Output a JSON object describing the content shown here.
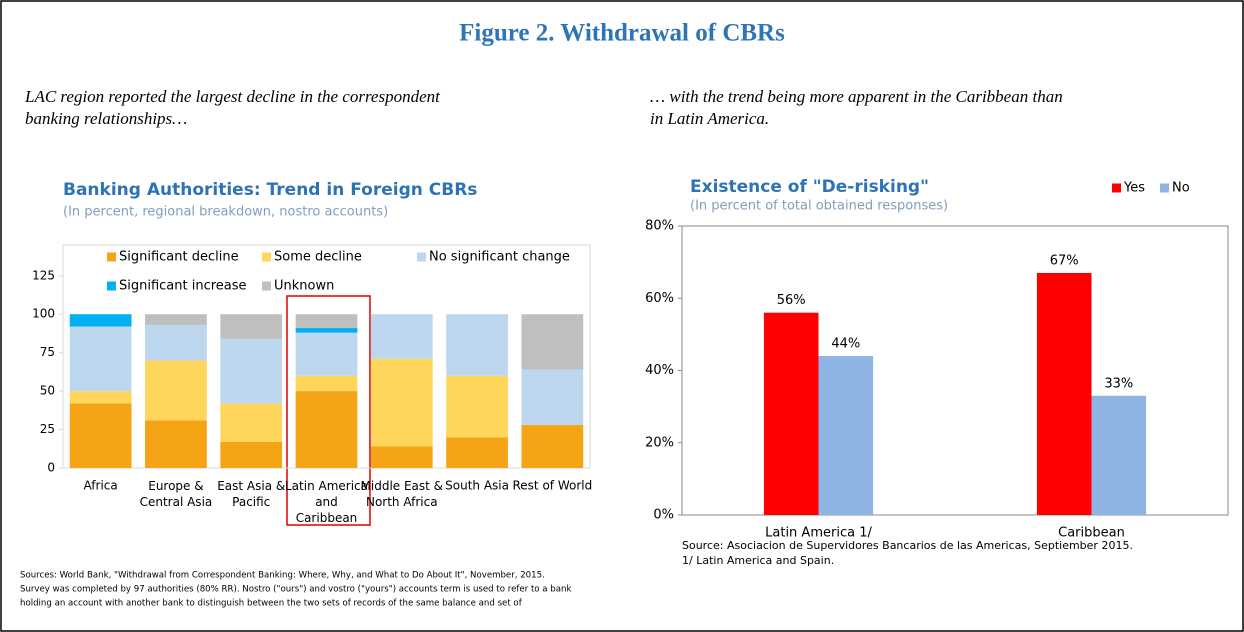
{
  "figure_title": "Figure 2. Withdrawal of CBRs",
  "left_caption": [
    "LAC region reported the largest decline in the correspondent",
    "banking relationships…"
  ],
  "right_caption": [
    "… with the trend being more apparent in the Caribbean than",
    "in Latin America."
  ],
  "left_sources": [
    "Sources: World Bank, \"Withdrawal from Correspondent Banking: Where, Why, and What to Do About It\", November, 2015.",
    "Survey was completed  by 97 authorities (80% RR). Nostro (\"ours\") and vostro (\"yours\") accounts term is used to refer to a bank",
    "holding an account with another bank to distinguish between the two sets of records of the same balance and set of"
  ],
  "right_sources": [
    "Source: Asociacion de Supervidores Bancarios de las Americas, Septiember 2015.",
    "1/ Latin America and Spain."
  ],
  "chart_data": [
    {
      "type": "bar",
      "stacked": true,
      "title": "Banking Authorities: Trend in Foreign CBRs",
      "subtitle": "(In percent, regional breakdown, nostro accounts)",
      "categories": [
        "Africa",
        "Europe &\nCentral Asia",
        "East Asia &\nPacific",
        "Latin America\nand\nCaribbean",
        "Middle East &\nNorth Africa",
        "South Asia",
        "Rest of World"
      ],
      "series": [
        {
          "name": "Significant decline",
          "color": "#f4a414",
          "values": [
            42,
            31,
            17,
            50,
            14,
            20,
            28
          ]
        },
        {
          "name": "Some decline",
          "color": "#ffd65c",
          "values": [
            8,
            39,
            25,
            10,
            57,
            40,
            0
          ]
        },
        {
          "name": "No significant change",
          "color": "#bdd7ee",
          "values": [
            42,
            23,
            42,
            28,
            29,
            40,
            36
          ]
        },
        {
          "name": "Significant increase",
          "color": "#00b0f0",
          "values": [
            8,
            0,
            0,
            3,
            0,
            0,
            0
          ]
        },
        {
          "name": "Unknown",
          "color": "#bfbfbf",
          "values": [
            0,
            7,
            16,
            9,
            0,
            0,
            36
          ]
        }
      ],
      "ylim": [
        0,
        145
      ],
      "yticks": [
        0,
        25,
        50,
        75,
        100,
        125
      ],
      "legend": "top"
    },
    {
      "type": "bar",
      "stacked": false,
      "title": "Existence of \"De-risking\"",
      "subtitle": "(In percent of total obtained responses)",
      "categories": [
        "Latin America 1/",
        "Caribbean"
      ],
      "series": [
        {
          "name": "Yes",
          "color": "#ff0000",
          "values": [
            56,
            67
          ],
          "value_labels": [
            "56%",
            "67%"
          ]
        },
        {
          "name": "No",
          "color": "#8eb4e3",
          "values": [
            44,
            33
          ],
          "value_labels": [
            "44%",
            "33%"
          ]
        }
      ],
      "ylim": [
        0,
        80
      ],
      "yticks": [
        {
          "value": 0,
          "label": "0%"
        },
        {
          "value": 20,
          "label": "20%"
        },
        {
          "value": 40,
          "label": "40%"
        },
        {
          "value": 60,
          "label": "60%"
        },
        {
          "value": 80,
          "label": "80%"
        }
      ],
      "legend": "upper right"
    }
  ]
}
